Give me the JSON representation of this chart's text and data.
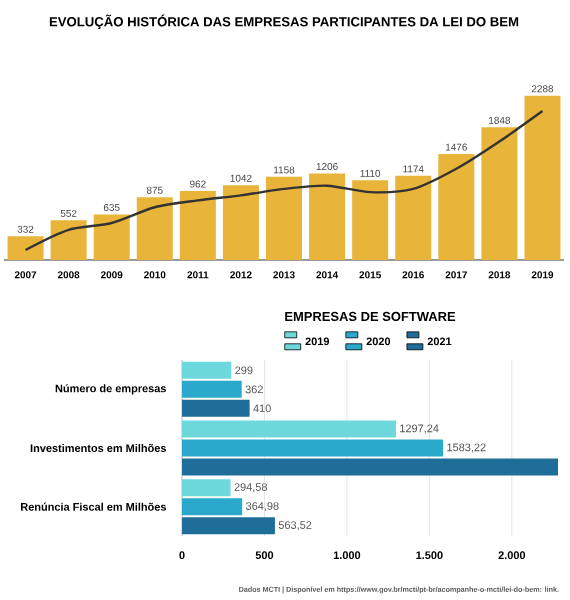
{
  "chart_data": [
    {
      "type": "bar",
      "title": "EVOLUÇÃO HISTÓRICA DAS EMPRESAS PARTICIPANTES DA LEI DO BEM",
      "categories": [
        "2007",
        "2008",
        "2009",
        "2010",
        "2011",
        "2012",
        "2013",
        "2014",
        "2015",
        "2016",
        "2017",
        "2018",
        "2019"
      ],
      "series": [
        {
          "type": "bar",
          "color": "#e8b53a",
          "values": [
            332,
            552,
            635,
            875,
            962,
            1042,
            1158,
            1206,
            1110,
            1174,
            1476,
            1848,
            2288
          ],
          "value_labels": [
            "332",
            "552",
            "635",
            "875",
            "962",
            "1042",
            "1158",
            "1206",
            "1110",
            "1174",
            "1476",
            "1848",
            "2288"
          ]
        },
        {
          "type": "line",
          "color": "#333333",
          "values": [
            140,
            420,
            515,
            735,
            830,
            900,
            990,
            1035,
            945,
            990,
            1270,
            1650,
            2075
          ]
        }
      ],
      "marker": "none",
      "line_style": "solid"
    },
    {
      "type": "bar",
      "orientation": "horizontal",
      "title": "EMPRESAS DE SOFTWARE",
      "categories": [
        "Número de empresas",
        "Investimentos em Milhões",
        "Renúncia Fiscal em Milhões"
      ],
      "series": [
        {
          "name": "2019",
          "color": "#6dd9dc",
          "values": [
            299,
            1297.24,
            294.58
          ],
          "value_labels": [
            "299",
            "1297,24",
            "294,58"
          ]
        },
        {
          "name": "2020",
          "color": "#2aa9cc",
          "values": [
            362,
            1583.22,
            364.98
          ],
          "value_labels": [
            "362",
            "1583,22",
            "364,98"
          ]
        },
        {
          "name": "2021",
          "color": "#1e6e99",
          "values": [
            410,
            2280,
            563.52
          ],
          "value_labels": [
            "410",
            null,
            "563,52"
          ]
        }
      ],
      "xlim": [
        0,
        2280
      ],
      "xticks": [
        0,
        500,
        {
          "value": 1000,
          "label": "1.000"
        },
        {
          "value": 1500,
          "label": "1.500"
        },
        {
          "value": 2000,
          "label": "2.000"
        }
      ],
      "grid": "x",
      "legend": "top",
      "annotations": [
        "Dados MCTI | Disponível em https://www.gov.br/mcti/pt-br/acompanhe-o-mcti/lei-do-bem: link."
      ]
    }
  ]
}
